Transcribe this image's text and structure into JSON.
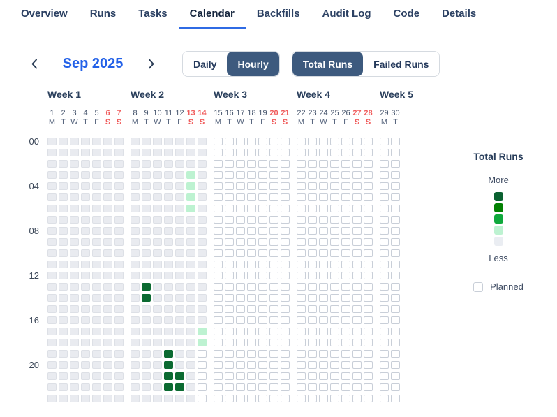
{
  "tabs": {
    "items": [
      {
        "label": "Overview",
        "active": false
      },
      {
        "label": "Runs",
        "active": false
      },
      {
        "label": "Tasks",
        "active": false
      },
      {
        "label": "Calendar",
        "active": true
      },
      {
        "label": "Backfills",
        "active": false
      },
      {
        "label": "Audit Log",
        "active": false
      },
      {
        "label": "Code",
        "active": false
      },
      {
        "label": "Details",
        "active": false
      }
    ]
  },
  "controls": {
    "month_label": "Sep 2025",
    "prev_icon": "chevron-left",
    "next_icon": "chevron-right",
    "view_toggle": {
      "options": [
        {
          "label": "Daily",
          "selected": false
        },
        {
          "label": "Hourly",
          "selected": true
        }
      ]
    },
    "metric_toggle": {
      "options": [
        {
          "label": "Total Runs",
          "selected": true
        },
        {
          "label": "Failed Runs",
          "selected": false
        }
      ]
    }
  },
  "calendar": {
    "hour_labels": [
      "00",
      "04",
      "08",
      "12",
      "16",
      "20"
    ],
    "cell_states_key": {
      "g": "past-no-runs",
      "w": "planned-future",
      "l": "few-runs",
      "d": "many-runs"
    },
    "weeks": [
      {
        "label": "Week 1",
        "days": [
          {
            "date": "1",
            "dow": "M",
            "weekend": false,
            "hours": "gggggggggggggggggggggggg"
          },
          {
            "date": "2",
            "dow": "T",
            "weekend": false,
            "hours": "gggggggggggggggggggggggg"
          },
          {
            "date": "3",
            "dow": "W",
            "weekend": false,
            "hours": "gggggggggggggggggggggggg"
          },
          {
            "date": "4",
            "dow": "T",
            "weekend": false,
            "hours": "gggggggggggggggggggggggg"
          },
          {
            "date": "5",
            "dow": "F",
            "weekend": false,
            "hours": "gggggggggggggggggggggggg"
          },
          {
            "date": "6",
            "dow": "S",
            "weekend": true,
            "hours": "gggggggggggggggggggggggg"
          },
          {
            "date": "7",
            "dow": "S",
            "weekend": true,
            "hours": "gggggggggggggggggggggggg"
          }
        ]
      },
      {
        "label": "Week 2",
        "days": [
          {
            "date": "8",
            "dow": "M",
            "weekend": false,
            "hours": "gggggggggggggggggggggggg"
          },
          {
            "date": "9",
            "dow": "T",
            "weekend": false,
            "hours": "gggggggggggggddggggggggg"
          },
          {
            "date": "10",
            "dow": "W",
            "weekend": false,
            "hours": "gggggggggggggggggggggggg"
          },
          {
            "date": "11",
            "dow": "T",
            "weekend": false,
            "hours": "gggggggggggggggggggddddg"
          },
          {
            "date": "12",
            "dow": "F",
            "weekend": false,
            "hours": "gggggggggggggggggggggddg"
          },
          {
            "date": "13",
            "dow": "S",
            "weekend": true,
            "hours": "gggllllggggggggggggggggg"
          },
          {
            "date": "14",
            "dow": "S",
            "weekend": true,
            "hours": "gggggggggggggggggllwwwww"
          }
        ]
      },
      {
        "label": "Week 3",
        "days": [
          {
            "date": "15",
            "dow": "M",
            "weekend": false,
            "hours": "wwwwwwwwwwwwwwwwwwwwwwww"
          },
          {
            "date": "16",
            "dow": "T",
            "weekend": false,
            "hours": "wwwwwwwwwwwwwwwwwwwwwwww"
          },
          {
            "date": "17",
            "dow": "W",
            "weekend": false,
            "hours": "wwwwwwwwwwwwwwwwwwwwwwww"
          },
          {
            "date": "18",
            "dow": "T",
            "weekend": false,
            "hours": "wwwwwwwwwwwwwwwwwwwwwwww"
          },
          {
            "date": "19",
            "dow": "F",
            "weekend": false,
            "hours": "wwwwwwwwwwwwwwwwwwwwwwww"
          },
          {
            "date": "20",
            "dow": "S",
            "weekend": true,
            "hours": "wwwwwwwwwwwwwwwwwwwwwwww"
          },
          {
            "date": "21",
            "dow": "S",
            "weekend": true,
            "hours": "wwwwwwwwwwwwwwwwwwwwwwww"
          }
        ]
      },
      {
        "label": "Week 4",
        "days": [
          {
            "date": "22",
            "dow": "M",
            "weekend": false,
            "hours": "wwwwwwwwwwwwwwwwwwwwwwww"
          },
          {
            "date": "23",
            "dow": "T",
            "weekend": false,
            "hours": "wwwwwwwwwwwwwwwwwwwwwwww"
          },
          {
            "date": "24",
            "dow": "W",
            "weekend": false,
            "hours": "wwwwwwwwwwwwwwwwwwwwwwww"
          },
          {
            "date": "25",
            "dow": "T",
            "weekend": false,
            "hours": "wwwwwwwwwwwwwwwwwwwwwwww"
          },
          {
            "date": "26",
            "dow": "F",
            "weekend": false,
            "hours": "wwwwwwwwwwwwwwwwwwwwwwww"
          },
          {
            "date": "27",
            "dow": "S",
            "weekend": true,
            "hours": "wwwwwwwwwwwwwwwwwwwwwwww"
          },
          {
            "date": "28",
            "dow": "S",
            "weekend": true,
            "hours": "wwwwwwwwwwwwwwwwwwwwwwww"
          }
        ]
      },
      {
        "label": "Week 5",
        "days": [
          {
            "date": "29",
            "dow": "M",
            "weekend": false,
            "hours": "wwwwwwwwwwwwwwwwwwwwwwww"
          },
          {
            "date": "30",
            "dow": "T",
            "weekend": false,
            "hours": "wwwwwwwwwwwwwwwwwwwwwwww"
          }
        ]
      }
    ]
  },
  "legend": {
    "title": "Total Runs",
    "more_label": "More",
    "less_label": "Less",
    "planned_label": "Planned",
    "scale": [
      "#0a6130",
      "#038103",
      "#0fa93c",
      "#bdf2d1",
      "#eaedf2"
    ],
    "planned_color": "#ffffff"
  },
  "colors": {
    "accent_blue": "#2361e8",
    "active_tab_underline": "#2f6be4",
    "selected_segment_bg": "#3d5a7e",
    "weekend_red": "#f05c5c",
    "cell_past": "#e9ebf0",
    "cell_future": "#ffffff",
    "cell_low": "#bdf2d1",
    "cell_high": "#0b6a31"
  }
}
